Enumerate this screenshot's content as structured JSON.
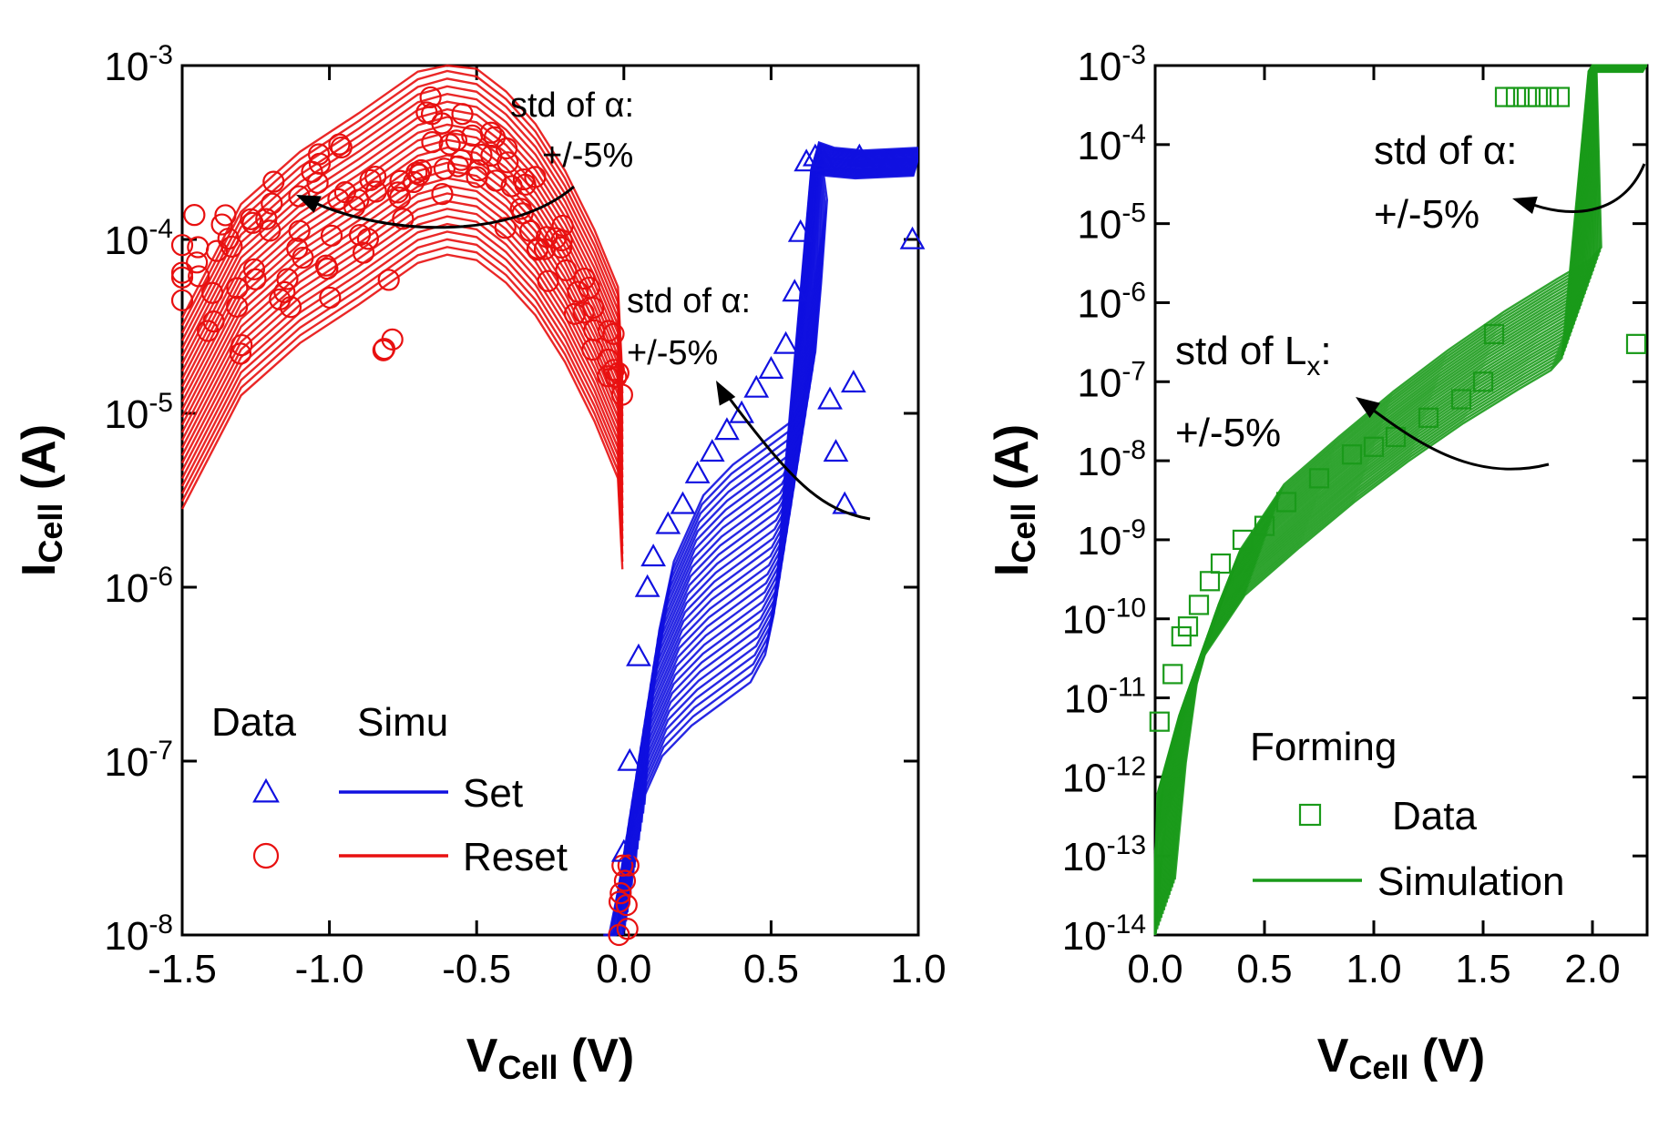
{
  "chart_data": [
    {
      "type": "line",
      "panel": "left",
      "xlabel": "V",
      "xlabel_sub": "Cell",
      "xlabel_unit": " (V)",
      "ylabel": "I",
      "ylabel_sub": "Cell",
      "ylabel_unit": " (A)",
      "xlim": [
        -1.5,
        1.0
      ],
      "ylim_exp": [
        -8,
        -3
      ],
      "x_ticks": [
        "-1.5",
        "-1.0",
        "-0.5",
        "0.0",
        "0.5",
        "1.0"
      ],
      "x_tick_values": [
        -1.5,
        -1.0,
        -0.5,
        0.0,
        0.5,
        1.0
      ],
      "y_ticks": [
        "10-8",
        "10-7",
        "10-6",
        "10-5",
        "10-4",
        "10-3"
      ],
      "y_tick_exps": [
        "-8",
        "-7",
        "-6",
        "-5",
        "-4",
        "-3"
      ],
      "legend": {
        "col_data": "Data",
        "col_simu": "Simu",
        "entries": [
          {
            "label": "Set",
            "color": "#1010e0",
            "marker": "triangle"
          },
          {
            "label": "Reset",
            "color": "#e81010",
            "marker": "circle"
          }
        ]
      },
      "annotations": [
        {
          "line1": "std of α:",
          "line2": "+/-5%"
        },
        {
          "line1": "std of α:",
          "line2": "+/-5%"
        }
      ],
      "series": [
        {
          "name": "Reset (Simu, median)",
          "color": "#e81010",
          "x": [
            -1.5,
            -1.3,
            -1.1,
            -0.9,
            -0.7,
            -0.6,
            -0.5,
            -0.4,
            -0.3,
            -0.2,
            -0.1,
            -0.02,
            -0.005
          ],
          "y": [
            1e-05,
            4.5e-05,
            9e-05,
            0.00015,
            0.00026,
            0.00029,
            0.00027,
            0.0002,
            0.00013,
            7e-05,
            3.2e-05,
            1.5e-05,
            4.5e-06
          ]
        },
        {
          "name": "Set (Simu, median)",
          "color": "#1010e0",
          "x": [
            0.0,
            0.02,
            0.05,
            0.1,
            0.2,
            0.3,
            0.4,
            0.5,
            0.55,
            0.58,
            0.6,
            0.62,
            0.65,
            0.7,
            0.8,
            1.0
          ],
          "y": [
            1e-08,
            3e-08,
            1e-07,
            2.5e-07,
            6e-07,
            9e-07,
            1.2e-06,
            1.6e-06,
            2.3e-06,
            4e-06,
            1e-05,
            3e-05,
            0.0003,
            0.00028,
            0.00027,
            0.00028
          ]
        },
        {
          "name": "Reset (Data)",
          "color": "#e81010",
          "marker": "circle",
          "x": [
            -1.5,
            -1.45,
            -1.4,
            -1.35,
            -1.3,
            -1.25,
            -1.2,
            -1.15,
            -1.1,
            -1.05,
            -1.0,
            -0.95,
            -0.9,
            -0.85,
            -0.8,
            -0.75,
            -0.7,
            -0.65,
            -0.6,
            -0.55,
            -0.5,
            -0.45,
            -0.4,
            -0.35,
            -0.3,
            -0.25,
            -0.2,
            -0.15,
            -0.1,
            -0.05,
            -0.02,
            0.0,
            0.0
          ],
          "y": [
            6e-05,
            0.0001,
            5e-05,
            0.00013,
            3e-05,
            8e-05,
            0.00018,
            5e-05,
            0.00012,
            0.00018,
            8e-05,
            0.0002,
            0.00011,
            0.00015,
            4e-05,
            0.00022,
            0.00038,
            0.0004,
            0.0003,
            0.00033,
            0.00025,
            0.00024,
            0.00019,
            0.00016,
            0.00013,
            0.0001,
            7.5e-05,
            5.5e-05,
            4e-05,
            2.8e-05,
            2.2e-05,
            1.5e-08,
            1.2e-08
          ]
        },
        {
          "name": "Set (Data)",
          "color": "#1010e0",
          "marker": "triangle",
          "x": [
            0.0,
            0.02,
            0.05,
            0.08,
            0.1,
            0.15,
            0.2,
            0.25,
            0.3,
            0.35,
            0.4,
            0.45,
            0.5,
            0.55,
            0.58,
            0.6,
            0.62,
            0.65,
            0.68,
            0.7,
            0.72,
            0.75,
            0.78,
            0.8,
            0.9,
            0.98
          ],
          "y": [
            3e-08,
            1e-07,
            4e-07,
            1e-06,
            1.5e-06,
            2.3e-06,
            3e-06,
            4.5e-06,
            6e-06,
            8e-06,
            1e-05,
            1.4e-05,
            1.8e-05,
            2.5e-05,
            5e-05,
            0.00011,
            0.00028,
            0.0003,
            0.00028,
            1.2e-05,
            6e-06,
            3e-06,
            1.5e-05,
            0.0003,
            0.00028,
            0.0001
          ]
        }
      ]
    },
    {
      "type": "line",
      "panel": "right",
      "xlabel": "V",
      "xlabel_sub": "Cell",
      "xlabel_unit": " (V)",
      "ylabel": "I",
      "ylabel_sub": "Cell",
      "ylabel_unit": " (A)",
      "xlim": [
        0.0,
        2.25
      ],
      "ylim_exp": [
        -14,
        -3
      ],
      "x_ticks": [
        "0.0",
        "0.5",
        "1.0",
        "1.5",
        "2.0"
      ],
      "x_tick_values": [
        0.0,
        0.5,
        1.0,
        1.5,
        2.0
      ],
      "y_ticks": [
        "10-14",
        "10-13",
        "10-12",
        "10-11",
        "10-10",
        "10-9",
        "10-8",
        "10-7",
        "10-6",
        "10-5",
        "10-4",
        "10-3"
      ],
      "y_tick_exps": [
        "-14",
        "-13",
        "-12",
        "-11",
        "-10",
        "-9",
        "-8",
        "-7",
        "-6",
        "-5",
        "-4",
        "-3"
      ],
      "legend": {
        "title": "Forming",
        "entries": [
          {
            "label": "Data",
            "color": "#1a9a1a",
            "marker": "square"
          },
          {
            "label": "Simulation",
            "color": "#1a9a1a",
            "marker": "line"
          }
        ]
      },
      "annotations": [
        {
          "line1": "std of α:",
          "line2": "+/-5%"
        },
        {
          "line1": "std of L",
          "line1_sub": "x",
          "line1_tail": ":",
          "line2": "+/-5%"
        }
      ],
      "series": [
        {
          "name": "Forming (Simulation, median)",
          "color": "#1a9a1a",
          "x": [
            0.0,
            0.05,
            0.1,
            0.2,
            0.3,
            0.5,
            0.75,
            1.0,
            1.25,
            1.5,
            1.75,
            1.9,
            1.95,
            2.0,
            2.25
          ],
          "y": [
            1e-14,
            3e-13,
            3e-12,
            3e-11,
            1.5e-10,
            1e-09,
            4e-09,
            1.5e-08,
            5e-08,
            1.5e-07,
            4e-07,
            7e-07,
            1e-06,
            0.001,
            0.001
          ]
        },
        {
          "name": "Forming (Data)",
          "color": "#1a9a1a",
          "marker": "square",
          "x": [
            0.02,
            0.08,
            0.12,
            0.15,
            0.2,
            0.25,
            0.3,
            0.4,
            0.5,
            0.6,
            0.75,
            0.9,
            1.0,
            1.1,
            1.25,
            1.4,
            1.5,
            1.55,
            1.6,
            1.65,
            1.7,
            1.75,
            1.8,
            1.85,
            2.2
          ],
          "y": [
            5e-12,
            2e-11,
            6e-11,
            8e-11,
            1.5e-10,
            3e-10,
            5e-10,
            1e-09,
            1.5e-09,
            3e-09,
            6e-09,
            1.2e-08,
            1.5e-08,
            2e-08,
            3.5e-08,
            6e-08,
            1e-07,
            4e-07,
            0.0004,
            0.0004,
            0.0004,
            0.0004,
            0.0004,
            0.0004,
            3e-07
          ]
        }
      ]
    }
  ]
}
